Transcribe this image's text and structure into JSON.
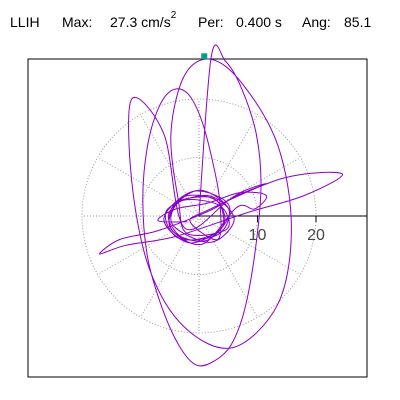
{
  "header": {
    "station": "LLIH",
    "max_label": "Max:",
    "max_value": "27.3 cm/s",
    "max_exponent": "2",
    "per_label": "Per:",
    "per_value": "0.400 s",
    "ang_label": "Ang:",
    "ang_value": "85.1"
  },
  "colors": {
    "trace": "#8a00c8",
    "grid": "#999999",
    "marker": "#00a080",
    "frame": "#000000"
  },
  "chart_data": {
    "type": "line",
    "plot_kind": "polar particle-motion hodogram",
    "title": "",
    "xlabel": "",
    "ylabel": "",
    "radial_ticks": [
      10,
      20
    ],
    "radial_tick_labels": [
      "10",
      "20"
    ],
    "radial_grid_rings": [
      10,
      20
    ],
    "angular_grid_step_deg": 30,
    "grid": true,
    "axis_direction_deg": 0,
    "peak_value": 27.3,
    "peak_units": "cm/s^2",
    "peak_marker": {
      "x": 0.9,
      "y": 27.3
    },
    "series": [
      {
        "values": [
          [
            0,
            0
          ],
          [
            2.1,
            27.3
          ],
          [
            4.5,
            26.5
          ],
          [
            7.2,
            22
          ],
          [
            9.8,
            14
          ],
          [
            10.6,
            5
          ],
          [
            9.6,
            -6
          ],
          [
            7.8,
            -16
          ],
          [
            5.5,
            -22
          ],
          [
            2.6,
            -24.8
          ],
          [
            -0.4,
            -25.5
          ],
          [
            -3.2,
            -22.5
          ],
          [
            -6.2,
            -16
          ],
          [
            -8.8,
            -7
          ],
          [
            -9.6,
            3
          ],
          [
            -8.8,
            12
          ],
          [
            -6.9,
            18.5
          ],
          [
            -4.6,
            21.5
          ],
          [
            -2,
            21
          ],
          [
            0.4,
            16.5
          ],
          [
            2.4,
            9
          ],
          [
            3.6,
            2
          ],
          [
            3.2,
            -4
          ],
          [
            -1.5,
            -1
          ],
          [
            1.5,
            1
          ],
          [
            14.5,
            6.5
          ],
          [
            24.5,
            7.2
          ],
          [
            18,
            3.5
          ],
          [
            8,
            0.5
          ],
          [
            -4,
            -3.5
          ],
          [
            -12.5,
            -5
          ],
          [
            -17,
            -6.5
          ],
          [
            -13.5,
            -4
          ],
          [
            -7,
            -2.5
          ],
          [
            2,
            1
          ],
          [
            7.5,
            4.2
          ],
          [
            11.5,
            5.5
          ],
          [
            5.5,
            3
          ],
          [
            -2.5,
            -2
          ],
          [
            -6,
            14
          ],
          [
            -11.5,
            20
          ],
          [
            -11.5,
            6
          ],
          [
            -8.5,
            -9
          ],
          [
            -2.5,
            -19
          ],
          [
            5.8,
            -22.5
          ],
          [
            13.5,
            -15
          ],
          [
            15.8,
            -2
          ],
          [
            13.5,
            12
          ],
          [
            7.5,
            22.5
          ],
          [
            2,
            26.8
          ],
          [
            -2.5,
            24
          ],
          [
            -4.8,
            14
          ],
          [
            -3.5,
            2.5
          ],
          [
            -2,
            -3
          ],
          [
            4.8,
            -2.2
          ],
          [
            3.5,
            1.8
          ],
          [
            -3,
            2.6
          ],
          [
            -4.5,
            -1.5
          ],
          [
            2,
            -4.5
          ],
          [
            6,
            -0.5
          ],
          [
            1.5,
            3.5
          ],
          [
            -5.5,
            1
          ],
          [
            -3.5,
            -3.8
          ],
          [
            3.5,
            -3
          ],
          [
            5,
            2
          ],
          [
            -1,
            4.2
          ],
          [
            -6,
            -0.5
          ],
          [
            -1.5,
            -4.6
          ],
          [
            4.2,
            -1.5
          ],
          [
            2.5,
            3
          ],
          [
            -4,
            2.2
          ],
          [
            -4.6,
            -2.5
          ],
          [
            1.2,
            -4.2
          ],
          [
            5.2,
            0.8
          ],
          [
            0,
            4.4
          ],
          [
            -5.2,
            0.3
          ],
          [
            -2.2,
            -4
          ],
          [
            3.8,
            -2.2
          ],
          [
            3,
            2.6
          ],
          [
            -2.8,
            3.2
          ],
          [
            -5,
            -1.8
          ],
          [
            0.6,
            -4.8
          ],
          [
            6.5,
            1.5
          ],
          [
            9.5,
            1.2
          ],
          [
            11.5,
            3.5
          ],
          [
            7,
            4
          ],
          [
            1.5,
            2.2
          ],
          [
            -4,
            1.2
          ],
          [
            -7,
            -0.8
          ],
          [
            -2,
            -1
          ]
        ]
      }
    ]
  }
}
